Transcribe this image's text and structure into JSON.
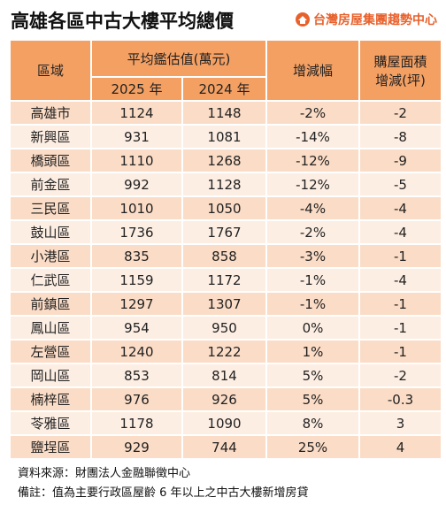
{
  "header": {
    "title": "高雄各區中古大樓平均總價",
    "logo": "台灣房屋集團趨勢中心"
  },
  "table": {
    "headers": {
      "region": "區域",
      "avg": "平均鑑估值(萬元)",
      "y2025": "2025 年",
      "y2024": "2024 年",
      "change": "增減幅",
      "area": [
        "購屋面積",
        "增減(坪)"
      ]
    },
    "rows": [
      [
        "高雄市",
        1124,
        1148,
        "-2%",
        -2
      ],
      [
        "新興區",
        931,
        1081,
        "-14%",
        -8
      ],
      [
        "橋頭區",
        1110,
        1268,
        "-12%",
        -9
      ],
      [
        "前金區",
        992,
        1128,
        "-12%",
        -5
      ],
      [
        "三民區",
        1010,
        1050,
        "-4%",
        -4
      ],
      [
        "鼓山區",
        1736,
        1767,
        "-2%",
        -4
      ],
      [
        "小港區",
        835,
        858,
        "-3%",
        -1
      ],
      [
        "仁武區",
        1159,
        1172,
        "-1%",
        -4
      ],
      [
        "前鎮區",
        1297,
        1307,
        "-1%",
        -1
      ],
      [
        "鳳山區",
        954,
        950,
        "0%",
        -1
      ],
      [
        "左營區",
        1240,
        1222,
        "1%",
        -1
      ],
      [
        "岡山區",
        853,
        814,
        "5%",
        -2
      ],
      [
        "楠梓區",
        976,
        926,
        "5%",
        -0.3
      ],
      [
        "苓雅區",
        1178,
        1090,
        "8%",
        3
      ],
      [
        "鹽埕區",
        929,
        744,
        "25%",
        4
      ]
    ]
  },
  "footer": {
    "source": "資料來源：財團法人金融聯徵中心",
    "note": "備註：值為主要行政區屋齡 6 年以上之中古大樓新增房貸"
  }
}
